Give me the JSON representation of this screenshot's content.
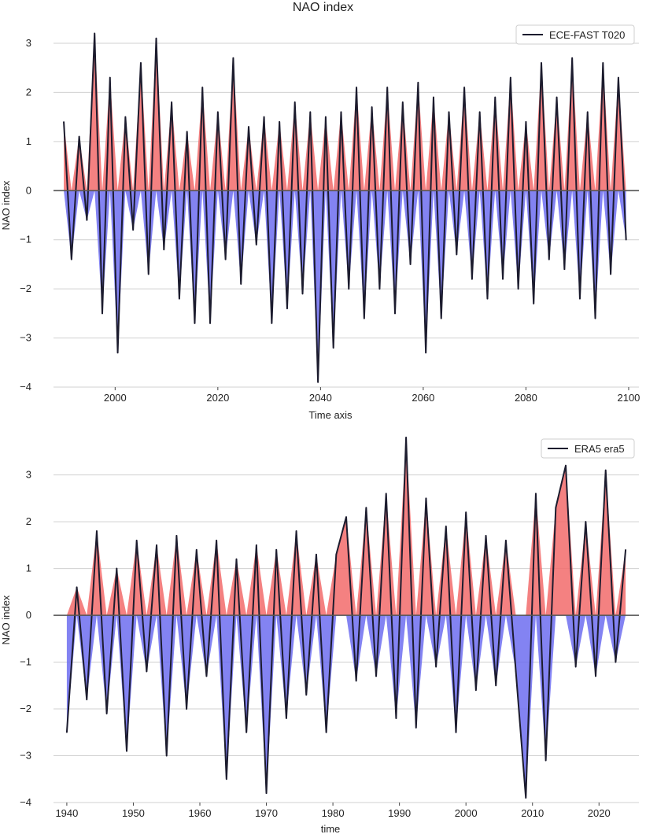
{
  "title": "NAO index",
  "colors": {
    "positive_fill": "#f26b6b",
    "negative_fill": "#6d6df0",
    "line": "#1c1c2e",
    "zero_line": "#555555",
    "grid": "#d0d0d0"
  },
  "chart_data": [
    {
      "type": "area",
      "legend_position": "top-right",
      "grid": true,
      "xlabel": "Time axis",
      "ylabel": "NAO index",
      "xlim": [
        1988,
        2102
      ],
      "ylim": [
        -4.0,
        3.4
      ],
      "xticks": [
        "2000",
        "2020",
        "2040",
        "2060",
        "2080",
        "2100"
      ],
      "yticks": [
        "3",
        "2",
        "1",
        "0",
        "−1",
        "−2",
        "−3",
        "−4"
      ],
      "series": [
        {
          "name": "ECE-FAST T020",
          "x": [
            1990.0,
            1991.5,
            1993.0,
            1994.5,
            1996.0,
            1997.5,
            1999.0,
            2000.5,
            2002.0,
            2003.5,
            2005.0,
            2006.5,
            2008.0,
            2009.5,
            2011.0,
            2012.5,
            2014.0,
            2015.5,
            2017.0,
            2018.5,
            2020.0,
            2021.5,
            2023.0,
            2024.5,
            2026.0,
            2027.5,
            2029.0,
            2030.5,
            2032.0,
            2033.5,
            2035.0,
            2036.5,
            2038.0,
            2039.5,
            2041.0,
            2042.5,
            2044.0,
            2045.5,
            2047.0,
            2048.5,
            2050.0,
            2051.5,
            2053.0,
            2054.5,
            2056.0,
            2057.5,
            2059.0,
            2060.5,
            2062.0,
            2063.5,
            2065.0,
            2066.5,
            2068.0,
            2069.5,
            2071.0,
            2072.5,
            2074.0,
            2075.5,
            2077.0,
            2078.5,
            2080.0,
            2081.5,
            2083.0,
            2084.5,
            2086.0,
            2087.5,
            2089.0,
            2090.5,
            2092.0,
            2093.5,
            2095.0,
            2096.5,
            2098.0,
            2099.5
          ],
          "values": [
            1.4,
            -1.4,
            1.1,
            -0.6,
            3.2,
            -2.5,
            2.3,
            -3.3,
            1.5,
            -0.8,
            2.6,
            -1.7,
            3.1,
            -1.2,
            1.8,
            -2.2,
            1.2,
            -2.7,
            2.1,
            -2.7,
            1.6,
            -1.4,
            2.7,
            -1.9,
            1.3,
            -1.1,
            1.5,
            -2.7,
            1.4,
            -2.4,
            1.8,
            -2.1,
            1.6,
            -3.9,
            1.5,
            -3.2,
            1.6,
            -2.0,
            2.1,
            -2.6,
            1.7,
            -2.0,
            2.1,
            -2.5,
            1.8,
            -1.5,
            2.2,
            -3.3,
            1.9,
            -2.6,
            1.6,
            -1.3,
            2.1,
            -1.8,
            1.6,
            -2.2,
            1.9,
            -1.8,
            2.3,
            -2.0,
            1.4,
            -2.3,
            2.6,
            -1.4,
            1.9,
            -1.6,
            2.7,
            -2.2,
            1.6,
            -2.6,
            2.6,
            -1.7,
            2.3,
            -1.0
          ]
        }
      ]
    },
    {
      "type": "area",
      "legend_position": "top-right",
      "grid": true,
      "xlabel": "time",
      "ylabel": "NAO index",
      "xlim": [
        1938,
        2026
      ],
      "ylim": [
        -4.0,
        3.8
      ],
      "xticks": [
        "1940",
        "1950",
        "1960",
        "1970",
        "1980",
        "1990",
        "2000",
        "2010",
        "2020"
      ],
      "yticks": [
        "3",
        "2",
        "1",
        "0",
        "−1",
        "−2",
        "−3",
        "−4"
      ],
      "series": [
        {
          "name": "ERA5 era5",
          "x": [
            1940.0,
            1941.5,
            1943.0,
            1944.5,
            1946.0,
            1947.5,
            1949.0,
            1950.5,
            1952.0,
            1953.5,
            1955.0,
            1956.5,
            1958.0,
            1959.5,
            1961.0,
            1962.5,
            1964.0,
            1965.5,
            1967.0,
            1968.5,
            1970.0,
            1971.5,
            1973.0,
            1974.5,
            1976.0,
            1977.5,
            1979.0,
            1980.5,
            1982.0,
            1983.5,
            1985.0,
            1986.5,
            1988.0,
            1989.5,
            1991.0,
            1992.5,
            1994.0,
            1995.5,
            1997.0,
            1998.5,
            2000.0,
            2001.5,
            2003.0,
            2004.5,
            2006.0,
            2007.5,
            2009.0,
            2010.5,
            2012.0,
            2013.5,
            2015.0,
            2016.5,
            2018.0,
            2019.5,
            2021.0,
            2022.5,
            2024.0
          ],
          "values": [
            -2.5,
            0.6,
            -1.8,
            1.8,
            -2.1,
            1.0,
            -2.9,
            1.6,
            -1.2,
            1.5,
            -3.0,
            1.7,
            -2.0,
            1.4,
            -1.3,
            1.6,
            -3.5,
            1.2,
            -2.5,
            1.5,
            -3.8,
            1.4,
            -2.2,
            1.8,
            -1.7,
            1.3,
            -2.5,
            1.3,
            2.1,
            -1.4,
            2.3,
            -1.3,
            2.6,
            -2.2,
            3.8,
            -2.4,
            2.5,
            -1.1,
            1.9,
            -2.5,
            2.2,
            -1.6,
            1.7,
            -1.5,
            1.6,
            -1.2,
            -3.9,
            2.6,
            -3.1,
            2.3,
            3.2,
            -1.1,
            2.0,
            -1.3,
            3.1,
            -1.0,
            1.4
          ]
        }
      ]
    }
  ]
}
